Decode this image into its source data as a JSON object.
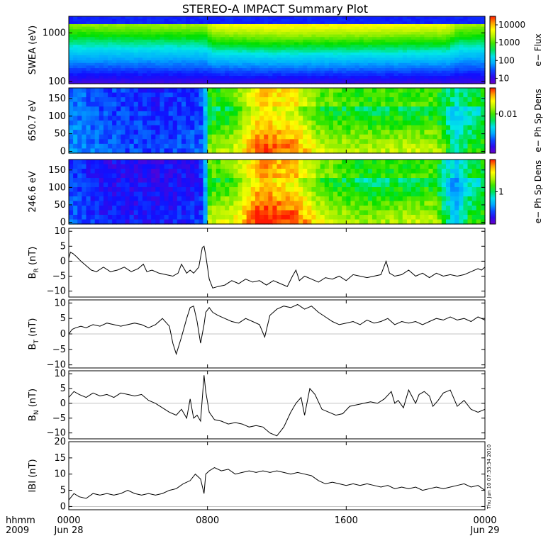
{
  "title": "STEREO-A IMPACT Summary Plot",
  "timestamp": "Thu Jun 10 07:35:34 2010",
  "time_axis": {
    "hhmm_label": "hhmm",
    "year_label": "2009",
    "ticks": [
      {
        "hour": 0,
        "time": "0000",
        "date": "Jun 28"
      },
      {
        "hour": 8,
        "time": "0800",
        "date": ""
      },
      {
        "hour": 16,
        "time": "1600",
        "date": ""
      },
      {
        "hour": 24,
        "time": "0000",
        "date": "Jun 29"
      }
    ]
  },
  "chart_data": [
    {
      "type": "heatmap",
      "id": "swea",
      "ylabel": "SWEA (eV)",
      "yscale": "log",
      "ylim": [
        90,
        2200
      ],
      "yticks": [
        {
          "v": 100,
          "label": "100"
        },
        {
          "v": 1000,
          "label": "1000"
        }
      ],
      "colorbar_label": "e− Flux",
      "colorbar_scale": "log",
      "colorbar_range": [
        5,
        30000
      ],
      "colorbar_ticks": [
        {
          "v": 10,
          "label": "10"
        },
        {
          "v": 100,
          "label": "100"
        },
        {
          "v": 1000,
          "label": "1000"
        },
        {
          "v": 10000,
          "label": "10000"
        }
      ],
      "colormap": "rainbow",
      "features": {
        "peak_log_flux_by_hour": [
          [
            0,
            3.3
          ],
          [
            7.9,
            3.4
          ],
          [
            8.3,
            3.9
          ],
          [
            12,
            4.1
          ],
          [
            18,
            4.0
          ],
          [
            21.8,
            3.9
          ],
          [
            22.5,
            3.4
          ],
          [
            24,
            3.4
          ]
        ]
      }
    },
    {
      "type": "heatmap",
      "id": "pad650",
      "ylabel": "650.7 eV",
      "ylim": [
        -5,
        180
      ],
      "yticks": [
        {
          "v": 0,
          "label": "0"
        },
        {
          "v": 50,
          "label": "50"
        },
        {
          "v": 100,
          "label": "100"
        },
        {
          "v": 150,
          "label": "150"
        }
      ],
      "colorbar_label": "e− Ph Sp Dens",
      "colorbar_ticks": [
        {
          "frac": 0.6,
          "label": "0.01"
        }
      ],
      "colormap": "rainbow",
      "features": {
        "level_by_hour": [
          [
            0,
            0.25
          ],
          [
            2,
            0.2
          ],
          [
            5,
            0.15
          ],
          [
            7.8,
            0.2
          ],
          [
            8,
            0.55
          ],
          [
            9.5,
            0.6
          ],
          [
            11,
            0.85
          ],
          [
            13,
            0.8
          ],
          [
            14.5,
            0.62
          ],
          [
            17,
            0.58
          ],
          [
            21,
            0.6
          ],
          [
            22.3,
            0.45
          ],
          [
            23,
            0.5
          ],
          [
            24,
            0.55
          ]
        ]
      }
    },
    {
      "type": "heatmap",
      "id": "pad246",
      "ylabel": "246.6 eV",
      "ylim": [
        -5,
        180
      ],
      "yticks": [
        {
          "v": 0,
          "label": "0"
        },
        {
          "v": 50,
          "label": "50"
        },
        {
          "v": 100,
          "label": "100"
        },
        {
          "v": 150,
          "label": "150"
        }
      ],
      "colorbar_label": "e− Ph Sp Dens",
      "colorbar_ticks": [
        {
          "frac": 0.5,
          "label": "1"
        }
      ],
      "colormap": "rainbow",
      "features": {
        "level_by_hour": [
          [
            0,
            0.2
          ],
          [
            2,
            0.12
          ],
          [
            5,
            0.1
          ],
          [
            7.8,
            0.15
          ],
          [
            8,
            0.6
          ],
          [
            9.5,
            0.65
          ],
          [
            11,
            0.9
          ],
          [
            13,
            0.85
          ],
          [
            14.5,
            0.65
          ],
          [
            17,
            0.55
          ],
          [
            21,
            0.6
          ],
          [
            22.3,
            0.35
          ],
          [
            23,
            0.5
          ],
          [
            24,
            0.55
          ]
        ]
      }
    },
    {
      "type": "line",
      "id": "br",
      "ylabel": "B",
      "ylabel_sub": "R",
      "ylabel_unit": "(nT)",
      "ylim": [
        -12,
        11
      ],
      "yticks": [
        {
          "v": -10,
          "label": "−10"
        },
        {
          "v": -5,
          "label": "−5"
        },
        {
          "v": 0,
          "label": "0"
        },
        {
          "v": 5,
          "label": "5"
        },
        {
          "v": 10,
          "label": "10"
        }
      ],
      "x": [
        0,
        0.1,
        0.25,
        0.45,
        0.7,
        1,
        1.3,
        1.6,
        2,
        2.4,
        2.8,
        3.2,
        3.6,
        4,
        4.3,
        4.5,
        4.8,
        5.2,
        5.6,
        6,
        6.3,
        6.5,
        6.8,
        7,
        7.2,
        7.5,
        7.7,
        7.8,
        7.9,
        8.1,
        8.3,
        8.6,
        9,
        9.4,
        9.8,
        10.2,
        10.6,
        11,
        11.4,
        11.8,
        12.2,
        12.6,
        12.9,
        13.1,
        13.3,
        13.6,
        14,
        14.4,
        14.8,
        15.2,
        15.6,
        16,
        16.4,
        16.8,
        17.2,
        17.6,
        18,
        18.3,
        18.5,
        18.8,
        19.2,
        19.6,
        20,
        20.4,
        20.8,
        21.2,
        21.6,
        22,
        22.4,
        22.8,
        23.2,
        23.6,
        23.8,
        24
      ],
      "values": [
        1,
        3,
        2.5,
        1.5,
        0,
        -1.5,
        -3,
        -3.5,
        -2,
        -3.5,
        -3,
        -2,
        -3.5,
        -2.5,
        -1,
        -3.5,
        -3,
        -4,
        -4.5,
        -5,
        -4,
        -1,
        -4,
        -3,
        -4,
        -2,
        4.5,
        5,
        2,
        -6,
        -9,
        -8.5,
        -8,
        -6.5,
        -7.5,
        -6,
        -7,
        -6.5,
        -8,
        -6.5,
        -7.5,
        -8.5,
        -5,
        -3,
        -6.5,
        -5,
        -6,
        -7,
        -5.5,
        -6,
        -5,
        -6.5,
        -4.5,
        -5,
        -5.5,
        -5,
        -4.5,
        0,
        -4,
        -5,
        -4.5,
        -3,
        -5,
        -4,
        -5.5,
        -4,
        -5,
        -4.5,
        -5,
        -4.5,
        -3.5,
        -2.5,
        -3,
        -2
      ]
    },
    {
      "type": "line",
      "id": "bt",
      "ylabel": "B",
      "ylabel_sub": "T",
      "ylabel_unit": "(nT)",
      "ylim": [
        -11,
        11
      ],
      "yticks": [
        {
          "v": -10,
          "label": "−10"
        },
        {
          "v": -5,
          "label": "−5"
        },
        {
          "v": 0,
          "label": "0"
        },
        {
          "v": 5,
          "label": "5"
        },
        {
          "v": 10,
          "label": "10"
        }
      ],
      "x": [
        0,
        0.2,
        0.4,
        0.7,
        1,
        1.4,
        1.8,
        2.2,
        2.6,
        3,
        3.4,
        3.8,
        4.2,
        4.6,
        5,
        5.4,
        5.8,
        6,
        6.2,
        6.5,
        6.8,
        7,
        7.2,
        7.4,
        7.6,
        7.8,
        7.9,
        8.1,
        8.3,
        8.6,
        9,
        9.4,
        9.8,
        10.2,
        10.6,
        11,
        11.3,
        11.6,
        12,
        12.4,
        12.8,
        13.2,
        13.6,
        14,
        14.4,
        14.8,
        15.2,
        15.6,
        16,
        16.4,
        16.8,
        17.2,
        17.6,
        18,
        18.4,
        18.8,
        19.2,
        19.6,
        20,
        20.4,
        20.8,
        21.2,
        21.6,
        22,
        22.4,
        22.8,
        23.2,
        23.6,
        24
      ],
      "values": [
        0,
        1.5,
        2,
        2.5,
        2,
        3,
        2.5,
        3.5,
        3,
        2.5,
        3,
        3.5,
        3,
        2,
        3,
        5,
        2.5,
        -3,
        -6.5,
        -1,
        5,
        8.5,
        9,
        4,
        -3,
        3,
        7,
        8.5,
        7,
        6,
        5,
        4,
        3.5,
        5,
        4,
        3,
        -1,
        6,
        8,
        9,
        8.5,
        9.5,
        8,
        9,
        7,
        5.5,
        4,
        3,
        3.5,
        4,
        3,
        4.5,
        3.5,
        4,
        5,
        3,
        4,
        3.5,
        4,
        3,
        4,
        5,
        4.5,
        5.5,
        4.5,
        5,
        4,
        5.5,
        4.5
      ]
    },
    {
      "type": "line",
      "id": "bn",
      "ylabel": "B",
      "ylabel_sub": "N",
      "ylabel_unit": "(nT)",
      "ylim": [
        -12,
        11
      ],
      "yticks": [
        {
          "v": -10,
          "label": "−10"
        },
        {
          "v": -5,
          "label": "−5"
        },
        {
          "v": 0,
          "label": "0"
        },
        {
          "v": 5,
          "label": "5"
        },
        {
          "v": 10,
          "label": "10"
        }
      ],
      "x": [
        0,
        0.3,
        0.6,
        1,
        1.4,
        1.8,
        2.2,
        2.6,
        3,
        3.4,
        3.8,
        4.2,
        4.6,
        5,
        5.4,
        5.8,
        6.2,
        6.5,
        6.8,
        7,
        7.2,
        7.4,
        7.6,
        7.8,
        7.9,
        8.1,
        8.4,
        8.8,
        9.2,
        9.6,
        10,
        10.4,
        10.8,
        11.2,
        11.6,
        12,
        12.4,
        12.8,
        13.1,
        13.4,
        13.6,
        13.9,
        14.2,
        14.6,
        15,
        15.4,
        15.8,
        16.2,
        16.6,
        17,
        17.4,
        17.8,
        18.2,
        18.6,
        18.8,
        19,
        19.3,
        19.6,
        20,
        20.2,
        20.5,
        20.8,
        21,
        21.3,
        21.6,
        22,
        22.4,
        22.8,
        23.2,
        23.6,
        24
      ],
      "values": [
        2,
        4,
        3,
        2,
        3.5,
        2.5,
        3,
        2,
        3.5,
        3,
        2.5,
        3,
        1,
        0,
        -1.5,
        -3,
        -4,
        -2,
        -5,
        1.5,
        -5,
        -4,
        -6,
        9.5,
        4,
        -3,
        -5.5,
        -6,
        -7,
        -6.5,
        -7,
        -8,
        -7.5,
        -8,
        -10,
        -11,
        -8,
        -3,
        0,
        2,
        -4,
        5,
        3,
        -2,
        -3,
        -4,
        -3.5,
        -1,
        -0.5,
        0,
        0.5,
        0,
        1.5,
        4,
        0,
        1,
        -1.5,
        4.5,
        0,
        3,
        4,
        2.5,
        -1,
        1,
        3.5,
        4.5,
        -1,
        1,
        -2,
        -3,
        -2
      ]
    },
    {
      "type": "line",
      "id": "bmag",
      "ylabel": "IBI",
      "ylabel_unit": "(nT)",
      "ylim": [
        -1,
        20
      ],
      "yticks": [
        {
          "v": 0,
          "label": "0"
        },
        {
          "v": 5,
          "label": "5"
        },
        {
          "v": 10,
          "label": "10"
        },
        {
          "v": 15,
          "label": "15"
        },
        {
          "v": 20,
          "label": "20"
        }
      ],
      "x": [
        0,
        0.3,
        0.6,
        1,
        1.4,
        1.8,
        2.2,
        2.6,
        3,
        3.4,
        3.8,
        4.2,
        4.6,
        5,
        5.4,
        5.8,
        6.2,
        6.6,
        7,
        7.3,
        7.6,
        7.8,
        7.9,
        8.1,
        8.4,
        8.8,
        9.2,
        9.6,
        10,
        10.4,
        10.8,
        11.2,
        11.6,
        12,
        12.4,
        12.8,
        13.2,
        13.6,
        14,
        14.4,
        14.8,
        15.2,
        15.6,
        16,
        16.4,
        16.8,
        17.2,
        17.6,
        18,
        18.4,
        18.8,
        19.2,
        19.6,
        20,
        20.4,
        20.8,
        21.2,
        21.6,
        22,
        22.4,
        22.8,
        23.2,
        23.6,
        24
      ],
      "values": [
        2,
        4,
        3,
        2.5,
        4,
        3.5,
        4,
        3.5,
        4,
        5,
        4,
        3.5,
        4,
        3.5,
        4,
        5,
        5.5,
        7,
        8,
        10,
        8.5,
        4,
        10,
        11,
        12,
        11,
        11.5,
        10,
        10.5,
        11,
        10.5,
        11,
        10.5,
        11,
        10.5,
        10,
        10.5,
        10,
        9.5,
        8,
        7,
        7.5,
        7,
        6.5,
        7,
        6.5,
        7,
        6.5,
        6,
        6.5,
        5.5,
        6,
        5.5,
        6,
        5,
        5.5,
        6,
        5.5,
        6,
        6.5,
        7,
        6,
        6.5,
        5
      ]
    }
  ]
}
